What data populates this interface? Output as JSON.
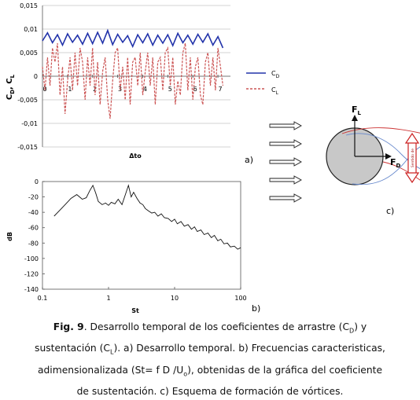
{
  "chart_data": [
    {
      "type": "line",
      "xlabel": "Δto",
      "ylabel": "CD, CL",
      "ylim": [
        -0.015,
        0.015
      ],
      "xlim": [
        0,
        7.5
      ],
      "y_ticks": [
        "0,015",
        "0,01",
        "0,005",
        "0",
        "-0,005",
        "-0,01",
        "-0,015"
      ],
      "y_tick_values": [
        0.015,
        0.01,
        0.005,
        0,
        -0.005,
        -0.01,
        -0.015
      ],
      "x_ticks": [
        "0",
        "1",
        "2",
        "3",
        "4",
        "5",
        "6",
        "7"
      ],
      "x_tick_values": [
        0,
        1,
        2,
        3,
        4,
        5,
        6,
        7
      ],
      "grid": "horizontal",
      "legend_position": "right",
      "series": [
        {
          "name": "C_D",
          "legend_main": "C",
          "legend_sub": "D",
          "color": "#2233aa",
          "dash": "solid",
          "x": [
            0,
            0.2,
            0.4,
            0.6,
            0.8,
            1.0,
            1.2,
            1.4,
            1.6,
            1.8,
            2.0,
            2.2,
            2.4,
            2.6,
            2.8,
            3.0,
            3.2,
            3.4,
            3.6,
            3.8,
            4.0,
            4.2,
            4.4,
            4.6,
            4.8,
            5.0,
            5.2,
            5.4,
            5.6,
            5.8,
            6.0,
            6.2,
            6.4,
            6.6,
            6.8,
            7.0,
            7.2
          ],
          "values": [
            0.0075,
            0.0092,
            0.0071,
            0.0088,
            0.0066,
            0.009,
            0.0072,
            0.0087,
            0.0068,
            0.0091,
            0.0069,
            0.0093,
            0.007,
            0.0097,
            0.0067,
            0.0089,
            0.0072,
            0.0086,
            0.0063,
            0.0088,
            0.0071,
            0.009,
            0.0066,
            0.0087,
            0.007,
            0.0088,
            0.0065,
            0.0091,
            0.0071,
            0.0087,
            0.0068,
            0.0089,
            0.0072,
            0.009,
            0.0066,
            0.0084,
            0.006
          ]
        },
        {
          "name": "C_L",
          "legend_main": "C",
          "legend_sub": "L",
          "color": "#cc5555",
          "dash": "dashed",
          "x": [
            0,
            0.1,
            0.2,
            0.3,
            0.4,
            0.5,
            0.6,
            0.7,
            0.8,
            0.9,
            1.0,
            1.1,
            1.2,
            1.3,
            1.4,
            1.5,
            1.6,
            1.7,
            1.8,
            1.9,
            2.0,
            2.1,
            2.2,
            2.3,
            2.4,
            2.5,
            2.6,
            2.7,
            2.8,
            2.9,
            3.0,
            3.1,
            3.2,
            3.3,
            3.4,
            3.5,
            3.6,
            3.7,
            3.8,
            3.9,
            4.0,
            4.1,
            4.2,
            4.3,
            4.4,
            4.5,
            4.6,
            4.7,
            4.8,
            4.9,
            5.0,
            5.1,
            5.2,
            5.3,
            5.4,
            5.5,
            5.6,
            5.7,
            5.8,
            5.9,
            6.0,
            6.1,
            6.2,
            6.3,
            6.4,
            6.5,
            6.6,
            6.7,
            6.8,
            6.9,
            7.0,
            7.1,
            7.2
          ],
          "values": [
            0.002,
            -0.003,
            0.004,
            -0.002,
            0.006,
            0.003,
            0.007,
            -0.004,
            0.002,
            -0.008,
            -0.001,
            0.004,
            -0.003,
            0.005,
            -0.002,
            0.006,
            0.003,
            -0.005,
            0.004,
            -0.002,
            0.006,
            -0.004,
            0.003,
            -0.006,
            0.001,
            0.004,
            -0.005,
            -0.009,
            -0.001,
            0.005,
            0.006,
            -0.003,
            0.002,
            -0.005,
            0.004,
            -0.006,
            0.003,
            0.004,
            -0.002,
            0.005,
            -0.004,
            0.001,
            0.005,
            -0.002,
            0.004,
            -0.006,
            0.003,
            0.004,
            -0.003,
            0.005,
            0.006,
            -0.002,
            0.004,
            -0.006,
            -0.001,
            -0.004,
            0.005,
            0.007,
            -0.003,
            0.004,
            -0.005,
            0.002,
            0.004,
            -0.004,
            -0.006,
            0.003,
            0.005,
            -0.002,
            0.004,
            -0.003,
            0.006,
            0.002,
            -0.002
          ]
        }
      ]
    },
    {
      "type": "line",
      "xlabel": "St",
      "ylabel": "dB",
      "xscale": "log",
      "xlim": [
        0.1,
        100
      ],
      "ylim": [
        -140,
        0
      ],
      "y_ticks": [
        "0",
        "-20",
        "-40",
        "-60",
        "-80",
        "-100",
        "-120",
        "-140"
      ],
      "y_tick_values": [
        0,
        -20,
        -40,
        -60,
        -80,
        -100,
        -120,
        -140
      ],
      "x_ticks": [
        "0.1",
        "1",
        "10",
        "100"
      ],
      "x_tick_values": [
        0.1,
        1,
        10,
        100
      ],
      "grid": "none",
      "series": [
        {
          "color": "#111111",
          "x": [
            0.15,
            0.18,
            0.22,
            0.27,
            0.33,
            0.4,
            0.46,
            0.52,
            0.58,
            0.64,
            0.7,
            0.8,
            0.9,
            1.0,
            1.1,
            1.25,
            1.4,
            1.6,
            1.8,
            2.0,
            2.2,
            2.4,
            2.7,
            3.0,
            3.3,
            3.6,
            4.0,
            4.5,
            5.0,
            5.6,
            6.3,
            7,
            8,
            9,
            10,
            11,
            12.5,
            14,
            16,
            18,
            20,
            22,
            25,
            28,
            32,
            36,
            40,
            45,
            50,
            56,
            63,
            70,
            80,
            90,
            100
          ],
          "values": [
            -45,
            -38,
            -30,
            -22,
            -17,
            -23,
            -21,
            -12,
            -5,
            -15,
            -26,
            -30,
            -28,
            -31,
            -27,
            -29,
            -23,
            -30,
            -17,
            -5,
            -20,
            -14,
            -22,
            -28,
            -30,
            -35,
            -38,
            -41,
            -40,
            -45,
            -42,
            -47,
            -48,
            -52,
            -49,
            -55,
            -52,
            -58,
            -56,
            -62,
            -59,
            -65,
            -63,
            -69,
            -67,
            -73,
            -70,
            -77,
            -75,
            -81,
            -80,
            -85,
            -84,
            -88,
            -86
          ]
        }
      ]
    }
  ],
  "panel_labels": {
    "a": "a)",
    "b": "b)",
    "c": "c)"
  },
  "diagram": {
    "flow_arrows": 5,
    "force_lift_main": "F",
    "force_lift_sub": "L",
    "force_drag_main": "F",
    "force_drag_sub": "D",
    "wake_label": "Sentido de"
  },
  "caption": {
    "label": "Fig. 9",
    "line1_a": ". Desarrollo temporal de los coeficientes de arrastre (C",
    "line1_sub": "D",
    "line1_b": ") y",
    "line2_a": "sustentación (C",
    "line2_sub": "L",
    "line2_b": "). a) Desarrollo temporal. b) Frecuencias caracteristicas,",
    "line3_a": "adimensionalizada (St= f D /U",
    "line3_sub": "o",
    "line3_b": "),  obtenidas de la gráfica del coeficiente",
    "line4": "de sustentación. c) Esquema de formación de vórtices."
  },
  "colors": {
    "cd_line": "#2233aa",
    "cl_line": "#cc5555",
    "cylinder_fill": "#c8c8c8",
    "vortex_red": "#cc3333",
    "vortex_blue": "#6688cc"
  }
}
